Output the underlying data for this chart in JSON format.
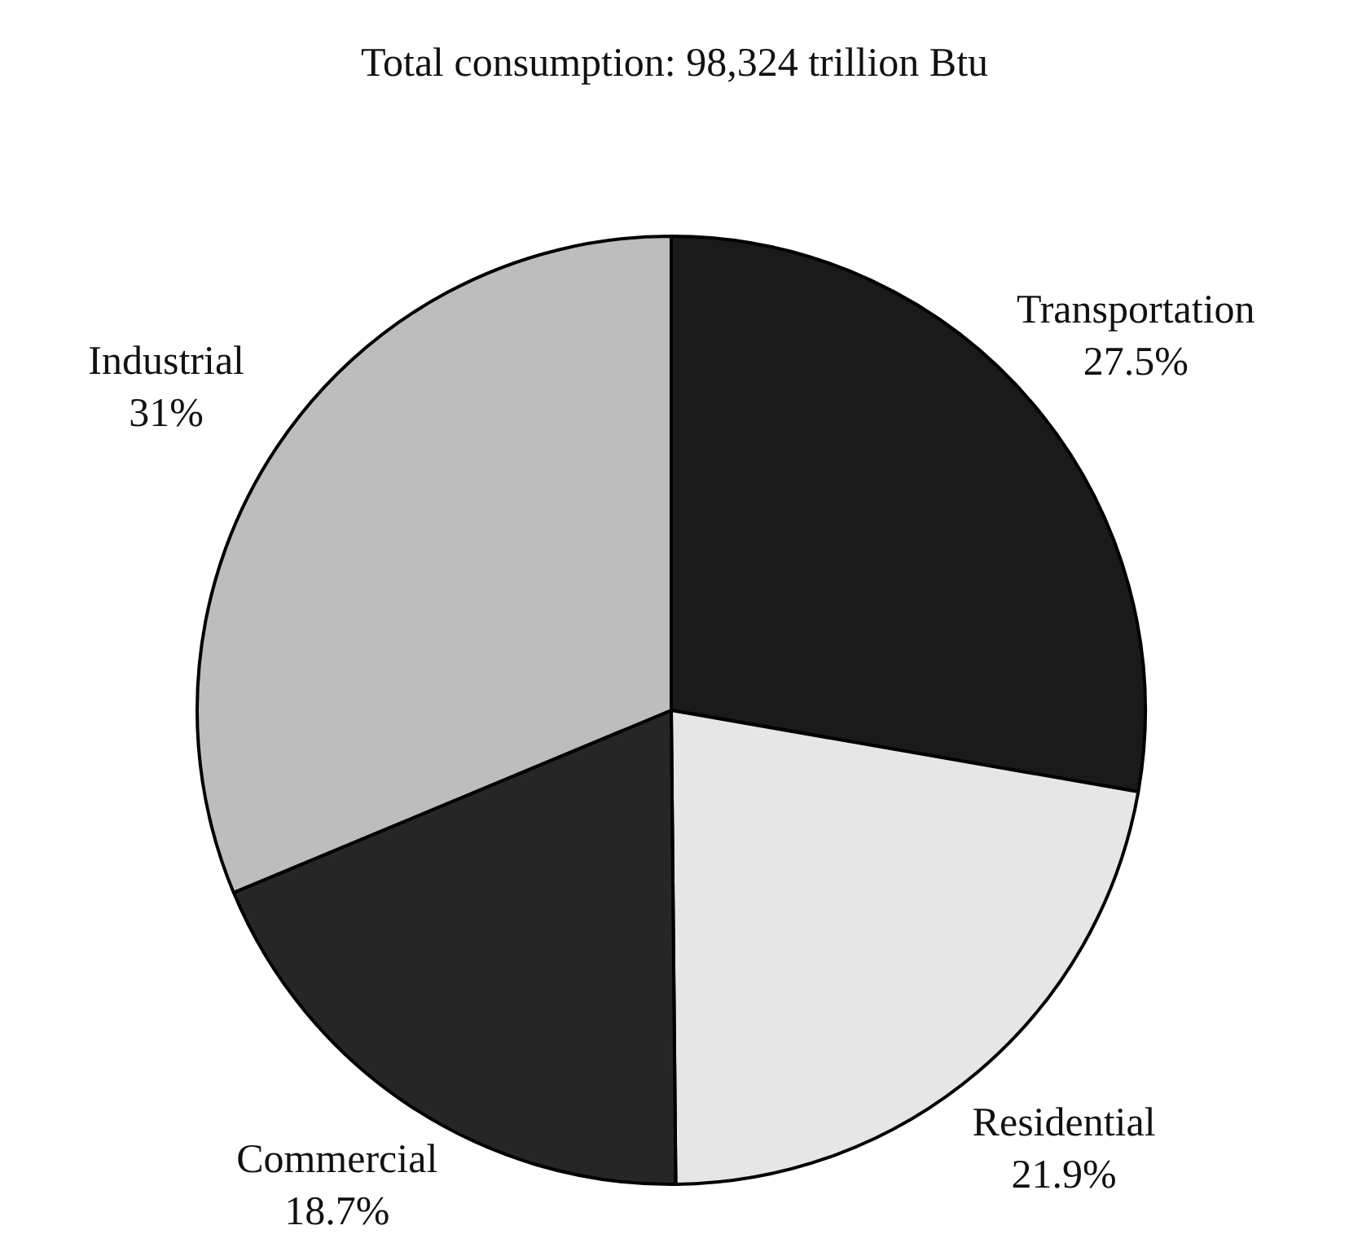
{
  "chart_data": {
    "type": "pie",
    "title": "Total consumption: 98,324 trillion Btu",
    "categories": [
      "Transportation",
      "Residential",
      "Commercial",
      "Industrial"
    ],
    "values": [
      27.5,
      21.9,
      18.7,
      31
    ],
    "value_labels": [
      "27.5%",
      "21.9%",
      "18.7%",
      "31%"
    ],
    "colors": [
      "#1a1a1a",
      "#e6e6e6",
      "#262626",
      "#bdbdbd"
    ],
    "legend": false
  }
}
